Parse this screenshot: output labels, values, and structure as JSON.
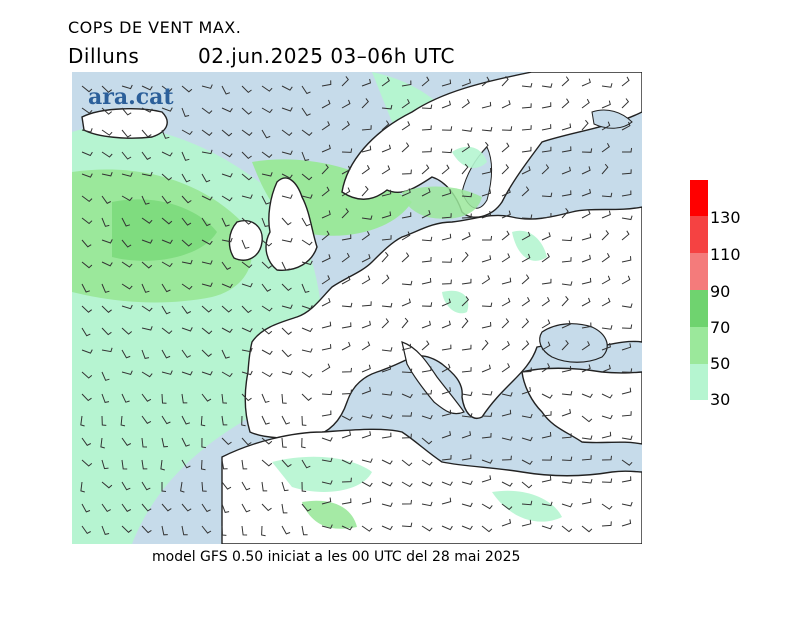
{
  "title": "COPS DE VENT MAX.",
  "day": "Dilluns",
  "datetime": "02.jun.2025 03–06h UTC",
  "logo": "ara.cat",
  "footer": "model GFS 0.50 iniciat a les 00 UTC del 28 mai 2025",
  "legend": {
    "labels": [
      "130",
      "110",
      "90",
      "70",
      "50",
      "30"
    ],
    "colors": [
      "#ff0000",
      "#f54242",
      "#f47b7b",
      "#6fd36f",
      "#9be89b",
      "#b5f5d0"
    ]
  },
  "colors": {
    "sea": "#c6dbea",
    "land": "#ffffff",
    "wind_low": "#b5f5d0",
    "wind_mid": "#9be89b",
    "wind_high": "#7fdc7f",
    "coast": "#222222"
  }
}
